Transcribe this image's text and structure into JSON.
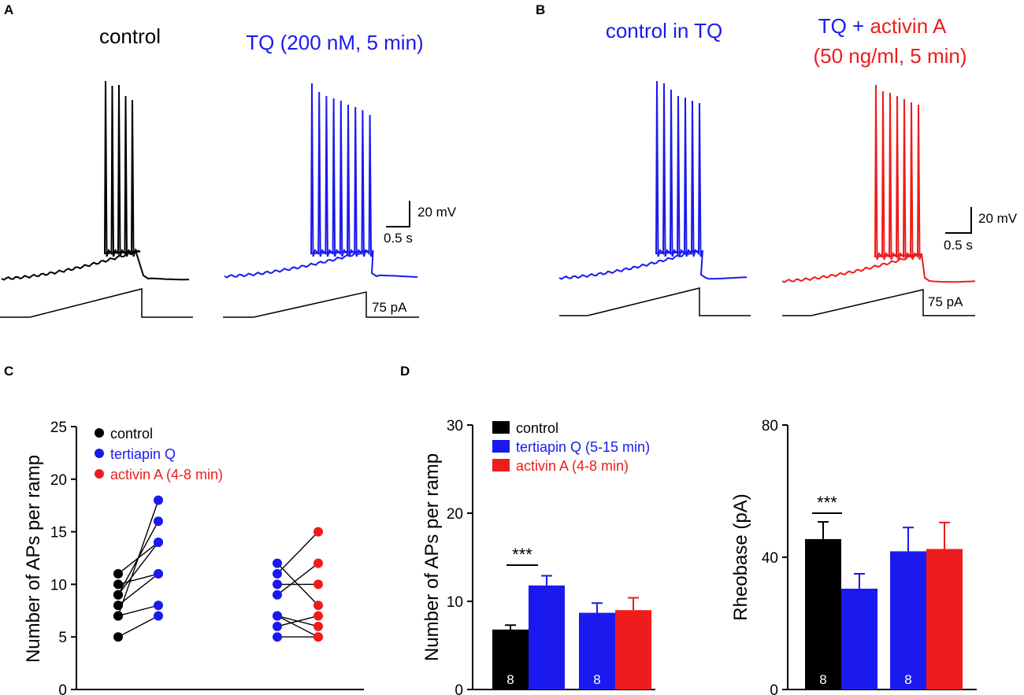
{
  "panels": {
    "A": {
      "letter": "A",
      "control_label": "control",
      "tq_label": "TQ (200 nM, 5 min)",
      "scalebar_voltage": "20 mV",
      "scalebar_time": "0.5 s",
      "ramp_amplitude": "75 pA"
    },
    "B": {
      "letter": "B",
      "control_label": "control in TQ",
      "label_part1": "TQ + ",
      "label_part2": "activin A",
      "label_line2": "(50 ng/ml, 5 min)",
      "scalebar_voltage": "20 mV",
      "scalebar_time": "0.5 s",
      "ramp_amplitude": "75 pA"
    },
    "C": {
      "letter": "C"
    },
    "D": {
      "letter": "D"
    }
  },
  "colors": {
    "control": "#000000",
    "tertiapin": "#1a1aee",
    "activin": "#ee1c1c"
  },
  "chart_data": [
    {
      "id": "panel-C",
      "type": "scatter",
      "title": "",
      "ylabel": "Number of APs per ramp",
      "xlabel": "",
      "ylim": [
        0,
        25
      ],
      "yticks": [
        0,
        5,
        10,
        15,
        20,
        25
      ],
      "legend": [
        "control",
        "tertiapin Q",
        "activin A (4-8 min)"
      ],
      "legend_position": "top-left",
      "groups": [
        {
          "name": "control vs tertiapin Q",
          "pairs": [
            [
              5,
              7
            ],
            [
              7,
              8
            ],
            [
              8,
              11
            ],
            [
              9,
              16
            ],
            [
              9,
              14
            ],
            [
              10,
              11
            ],
            [
              11,
              14
            ],
            [
              7,
              18
            ]
          ]
        },
        {
          "name": "tertiapin Q vs activin A",
          "pairs": [
            [
              5,
              5
            ],
            [
              6,
              7
            ],
            [
              7,
              6
            ],
            [
              9,
              12
            ],
            [
              7,
              5
            ],
            [
              10,
              10
            ],
            [
              12,
              8
            ],
            [
              11,
              15
            ]
          ]
        }
      ]
    },
    {
      "id": "panel-D-left",
      "type": "bar",
      "ylabel": "Number of APs per ramp",
      "ylim": [
        0,
        30
      ],
      "yticks": [
        0,
        10,
        20,
        30
      ],
      "legend": [
        "control",
        "tertiapin Q (5-15 min)",
        "activin A (4-8 min)"
      ],
      "legend_position": "top-left",
      "series": [
        {
          "name": "control",
          "values": [
            6.8
          ],
          "errors": [
            0.5
          ]
        },
        {
          "name": "tertiapin Q (5-15 min)",
          "values": [
            11.8,
            8.7
          ],
          "errors": [
            1.1,
            1.1
          ]
        },
        {
          "name": "activin A (4-8 min)",
          "values": [
            9.0
          ],
          "errors": [
            1.4
          ]
        }
      ],
      "n_labels": [
        "8",
        "8"
      ],
      "significance": "***"
    },
    {
      "id": "panel-D-right",
      "type": "bar",
      "ylabel": "Rheobase (pA)",
      "ylim": [
        0,
        80
      ],
      "yticks": [
        0,
        40,
        80
      ],
      "series": [
        {
          "name": "control",
          "values": [
            45.5
          ],
          "errors": [
            5.2
          ]
        },
        {
          "name": "tertiapin Q (5-15 min)",
          "values": [
            30.5,
            41.8
          ],
          "errors": [
            4.5,
            7.2
          ]
        },
        {
          "name": "activin A (4-8 min)",
          "values": [
            42.5
          ],
          "errors": [
            8.0
          ]
        }
      ],
      "n_labels": [
        "8",
        "8"
      ],
      "significance": "***"
    }
  ]
}
